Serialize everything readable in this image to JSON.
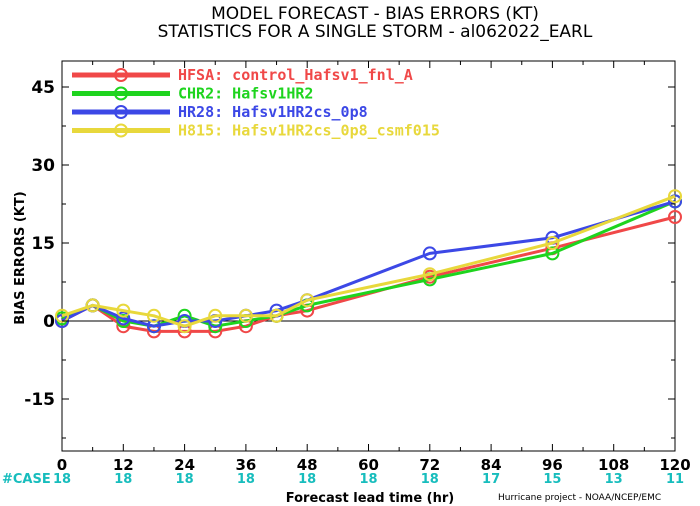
{
  "chart_data": {
    "type": "line",
    "title": "MODEL FORECAST - BIAS ERRORS (KT)",
    "subtitle": "STATISTICS FOR A SINGLE STORM - al062022_EARL",
    "xlabel": "Forecast lead time (hr)",
    "ylabel": "BIAS ERRORS (KT)",
    "xlim": [
      0,
      120
    ],
    "ylim": [
      -25,
      50
    ],
    "xticks": [
      0,
      12,
      24,
      36,
      48,
      60,
      72,
      84,
      96,
      108,
      120
    ],
    "yticks": [
      -15,
      0,
      15,
      30,
      45
    ],
    "grid": false,
    "zero_line": true,
    "legend_position": "top-left",
    "case_label": "#CASE",
    "case_counts": [
      {
        "x": 0,
        "n": "18"
      },
      {
        "x": 12,
        "n": "18"
      },
      {
        "x": 24,
        "n": "18"
      },
      {
        "x": 36,
        "n": "18"
      },
      {
        "x": 48,
        "n": "18"
      },
      {
        "x": 60,
        "n": "18"
      },
      {
        "x": 72,
        "n": "18"
      },
      {
        "x": 84,
        "n": "17"
      },
      {
        "x": 96,
        "n": "15"
      },
      {
        "x": 108,
        "n": "13"
      },
      {
        "x": 120,
        "n": "11"
      }
    ],
    "credit": "Hurricane project - NOAA/NCEP/EMC",
    "series": [
      {
        "name": "HFSA: control_Hafsv1_fnl_A",
        "color": "#f04848",
        "points": [
          [
            0,
            0
          ],
          [
            6,
            3
          ],
          [
            12,
            -1
          ],
          [
            18,
            -2
          ],
          [
            24,
            -2
          ],
          [
            30,
            -2
          ],
          [
            36,
            -1
          ],
          [
            42,
            1
          ],
          [
            48,
            2
          ],
          [
            72,
            8.5
          ],
          [
            96,
            14
          ],
          [
            120,
            20
          ]
        ]
      },
      {
        "name": "CHR2: Hafsv1HR2",
        "color": "#1ed41e",
        "points": [
          [
            0,
            0.5
          ],
          [
            6,
            3
          ],
          [
            12,
            0
          ],
          [
            18,
            -1
          ],
          [
            24,
            1
          ],
          [
            30,
            -1
          ],
          [
            36,
            0
          ],
          [
            42,
            1
          ],
          [
            48,
            3
          ],
          [
            72,
            8
          ],
          [
            96,
            13
          ],
          [
            120,
            23
          ]
        ]
      },
      {
        "name": "HR28: Hafsv1HR2cs_0p8",
        "color": "#3c48e6",
        "points": [
          [
            0,
            0
          ],
          [
            6,
            3
          ],
          [
            12,
            0.5
          ],
          [
            18,
            -1
          ],
          [
            24,
            0
          ],
          [
            30,
            0
          ],
          [
            36,
            1
          ],
          [
            42,
            2
          ],
          [
            48,
            4
          ],
          [
            72,
            13
          ],
          [
            96,
            16
          ],
          [
            120,
            23
          ]
        ]
      },
      {
        "name": "H815: Hafsv1HR2cs_0p8_csmf015",
        "color": "#e8d83c",
        "points": [
          [
            0,
            1
          ],
          [
            6,
            3
          ],
          [
            12,
            2
          ],
          [
            18,
            1
          ],
          [
            24,
            -1
          ],
          [
            30,
            1
          ],
          [
            36,
            1
          ],
          [
            42,
            1
          ],
          [
            48,
            4
          ],
          [
            72,
            9
          ],
          [
            96,
            15
          ],
          [
            120,
            24
          ]
        ]
      }
    ]
  }
}
